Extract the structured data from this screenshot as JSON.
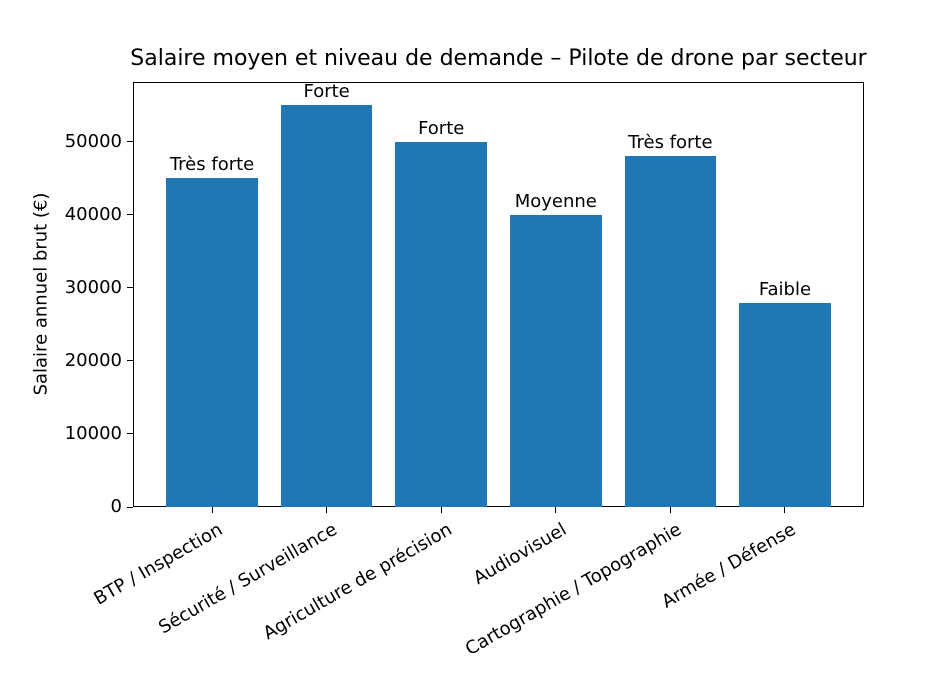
{
  "chart_data": {
    "type": "bar",
    "title": "Salaire moyen et niveau de demande – Pilote de drone par secteur",
    "xlabel": "",
    "ylabel": "Salaire annuel brut (€)",
    "categories": [
      "BTP / Inspection",
      "Sécurité / Surveillance",
      "Agriculture de précision",
      "Audiovisuel",
      "Cartographie / Topographie",
      "Armée / Défense"
    ],
    "values": [
      45000,
      55000,
      50000,
      40000,
      48000,
      28000
    ],
    "bar_labels": [
      "Très forte",
      "Forte",
      "Forte",
      "Moyenne",
      "Très forte",
      "Faible"
    ],
    "yticks": [
      0,
      10000,
      20000,
      30000,
      40000,
      50000
    ],
    "ylim": [
      0,
      58200
    ],
    "x_tick_rotation_deg": 30,
    "grid": false,
    "legend": false,
    "bar_color": "#1f77b4",
    "axis_color": "#000000",
    "text_color": "#000000"
  }
}
